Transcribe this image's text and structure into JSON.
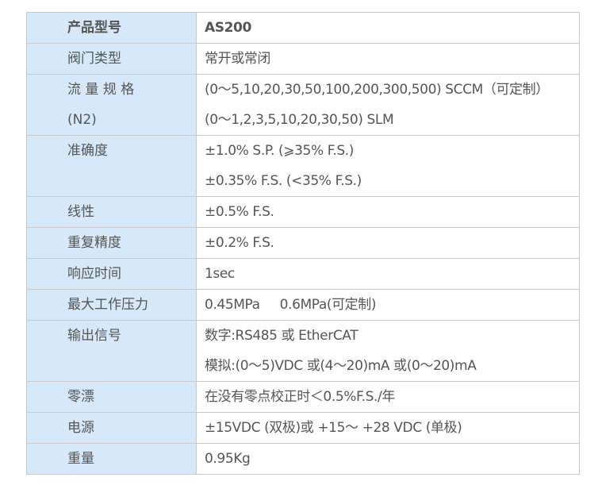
{
  "rows": [
    {
      "label": [
        "产品型号"
      ],
      "value": [
        "AS200"
      ],
      "header": true
    },
    {
      "label": [
        "阀门类型"
      ],
      "value": [
        "常开或常闭"
      ]
    },
    {
      "label": [
        "流 量 规 格",
        "(N2)"
      ],
      "value": [
        "(0～5,10,20,30,50,100,200,300,500) SCCM（可定制）",
        "(0～1,2,3,5,10,20,30,50) SLM"
      ]
    },
    {
      "label": [
        "准确度"
      ],
      "value": [
        "±1.0% S.P. (⩾35% F.S.)",
        "±0.35% F.S. (<35% F.S.)"
      ]
    },
    {
      "label": [
        "线性"
      ],
      "value": [
        "±0.5% F.S."
      ]
    },
    {
      "label": [
        "重复精度"
      ],
      "value": [
        "±0.2% F.S."
      ]
    },
    {
      "label": [
        "响应时间"
      ],
      "value": [
        "1sec"
      ]
    },
    {
      "label": [
        "最大工作压力"
      ],
      "value": [
        "0.45MPa     0.6MPa(可定制)"
      ]
    },
    {
      "label": [
        "输出信号"
      ],
      "value": [
        "数字:RS485 或 EtherCAT",
        "模拟:(0～5)VDC 或(4～20)mA 或(0～20)mA"
      ]
    },
    {
      "label": [
        "零漂"
      ],
      "value": [
        "在没有零点校正时＜0.5%F.S./年"
      ]
    },
    {
      "label": [
        "电源"
      ],
      "value": [
        "±15VDC (双极)或 +15～ +28 VDC (单极)"
      ]
    },
    {
      "label": [
        "重量"
      ],
      "value": [
        "0.95Kg"
      ]
    }
  ]
}
